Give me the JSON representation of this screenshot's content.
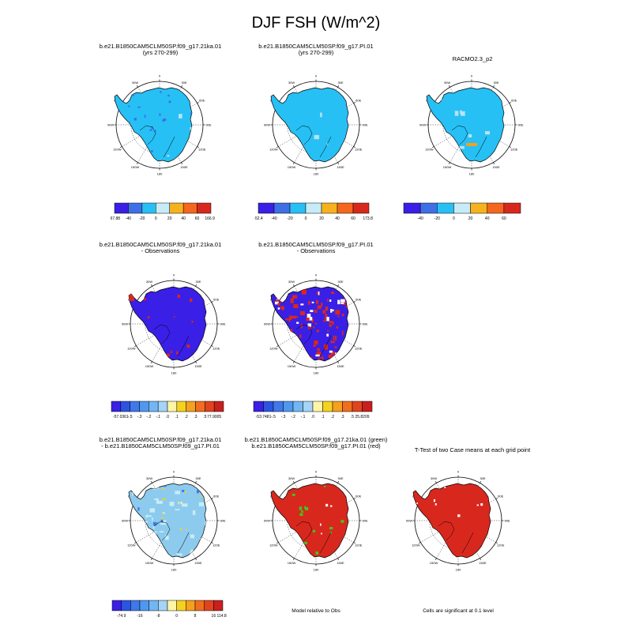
{
  "title": "DJF FSH (W/m^2)",
  "colors": {
    "ice": "#26c0f5",
    "ice_light": "#b7e3f7",
    "ocean": "#ffffff",
    "diff_blue": "#3a1fe6",
    "diff_red": "#d8281e",
    "green": "#3cc81e",
    "yellow": "#f5d21e",
    "orange": "#f5a01e",
    "mid_blue": "#8ccbee",
    "light_cyan": "#c7ecf7"
  },
  "lon_labels": [
    "0",
    "30E",
    "60E",
    "90E",
    "120E",
    "150E",
    "180",
    "150W",
    "120W",
    "90W",
    "60W",
    "30W"
  ],
  "panels": [
    {
      "id": "case1",
      "title_lines": [
        "b.e21.B1850CAM5CLM50SP.f09_g17.21ka.01",
        "(yrs 270-299)"
      ],
      "fill": "ice"
    },
    {
      "id": "case2",
      "title_lines": [
        "b.e21.B1850CAM5CLM50SP.f09_g17.PI.01",
        "(yrs 270-299)"
      ],
      "fill": "ice"
    },
    {
      "id": "obs",
      "title_lines": [
        "RACMO2.3_p2"
      ],
      "fill": "ice"
    },
    {
      "id": "diff1",
      "title_lines": [
        "b.e21.B1850CAM5CLM50SP.f09_g17.21ka.01",
        "- Observations"
      ],
      "fill": "diff_blue"
    },
    {
      "id": "diff2",
      "title_lines": [
        "b.e21.B1850CAM5CLM50SP.f09_g17.PI.01",
        "- Observations"
      ],
      "fill": "diff_blue"
    },
    {
      "id": "casediff",
      "title_lines": [
        "b.e21.B1850CAM5CLM50SP.f09_g17.21ka.01",
        "- b.e21.B1850CAM5CLM50SP.f09_g17.PI.01"
      ],
      "fill": "mid_blue"
    },
    {
      "id": "rel",
      "title_lines": [
        "b.e21.B1850CAM5CLM50SP.f09_g17.21ka.01 (green)",
        "b.e21.B1850CAM5CLM50SP.f09_g17.PI.01 (red)"
      ],
      "fill": "diff_red"
    },
    {
      "id": "ttest",
      "title_lines": [
        "T-Test of two Case means at each grid point"
      ],
      "fill": "diff_red"
    }
  ],
  "colorbars": [
    {
      "id": "cb1",
      "colors": [
        "#3a1fe6",
        "#3f6fe6",
        "#26c0f5",
        "#c7ecf7",
        "#f5b21e",
        "#f5661e",
        "#d8281e"
      ],
      "labels": [
        "-67.88",
        "-40",
        "-20",
        "0",
        "20",
        "40",
        "60",
        "166.96"
      ]
    },
    {
      "id": "cb2",
      "colors": [
        "#3a1fe6",
        "#3f6fe6",
        "#26c0f5",
        "#c7ecf7",
        "#f5b21e",
        "#f5661e",
        "#d8281e"
      ],
      "labels": [
        "-52.4",
        "-40",
        "-20",
        "0",
        "20",
        "40",
        "60",
        "173.86"
      ]
    },
    {
      "id": "cb3",
      "colors": [
        "#3a1fe6",
        "#3f6fe6",
        "#26c0f5",
        "#c7ecf7",
        "#f5b21e",
        "#f5661e",
        "#d8281e"
      ],
      "labels": [
        "",
        "-40",
        "-20",
        "0",
        "20",
        "40",
        "60",
        ""
      ]
    },
    {
      "id": "cb4",
      "colors": [
        "#3a1fe6",
        "#2c54e0",
        "#3f78ea",
        "#4f98f0",
        "#72b6f4",
        "#a4d4f6",
        "#fff5a8",
        "#f5d21e",
        "#f5a01e",
        "#f06e1e",
        "#e0441e",
        "#c8201e"
      ],
      "labels": [
        "-57.0361",
        "-.5",
        "-.3",
        "-.2",
        "-.1",
        ".0",
        ".1",
        ".2",
        ".3",
        ".5",
        "77.9005"
      ]
    },
    {
      "id": "cb5",
      "colors": [
        "#3a1fe6",
        "#2c54e0",
        "#3f78ea",
        "#4f98f0",
        "#72b6f4",
        "#a4d4f6",
        "#fff5a8",
        "#f5d21e",
        "#f5a01e",
        "#f06e1e",
        "#e0441e",
        "#c8201e"
      ],
      "labels": [
        "-53.7481",
        "-.5",
        "-.3",
        "-.2",
        "-.1",
        ".0",
        ".1",
        ".2",
        ".3",
        ".5",
        "25.8209"
      ]
    },
    {
      "id": "cb6",
      "colors": [
        "#3a1fe6",
        "#2c54e0",
        "#3f78ea",
        "#4f98f0",
        "#72b6f4",
        "#a4d4f6",
        "#fff5a8",
        "#f5d21e",
        "#f5a01e",
        "#f06e1e",
        "#e0441e",
        "#c8201e"
      ],
      "labels": [
        "-74.9",
        "",
        "-16",
        "",
        "-8",
        "",
        "0",
        "",
        "8",
        "",
        "16",
        "114.84"
      ]
    }
  ],
  "notes": {
    "model_relative": "Model relative to Obs",
    "significance": "Cells are significant at 0.1 level"
  }
}
